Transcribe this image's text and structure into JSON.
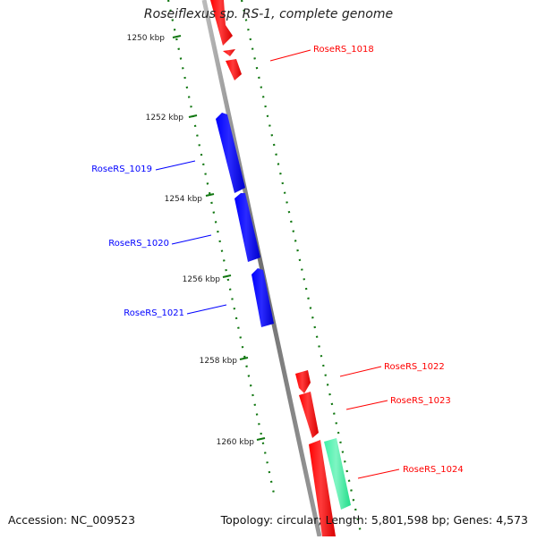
{
  "title": "Roseiflexus sp. RS-1, complete genome",
  "footer": {
    "accession": "Accession: NC_009523",
    "summary": "Topology: circular; Length: 5,801,598 bp; Genes: 4,573"
  },
  "scale_labels": [
    "1250 kbp",
    "1252 kbp",
    "1254 kbp",
    "1256 kbp",
    "1258 kbp",
    "1260 kbp"
  ],
  "genes": [
    {
      "label": "RoseRS_1018",
      "strand": "forward",
      "color": "#ff0000"
    },
    {
      "label": "RoseRS_1019",
      "strand": "reverse",
      "color": "#0000ff"
    },
    {
      "label": "RoseRS_1020",
      "strand": "reverse",
      "color": "#0000ff"
    },
    {
      "label": "RoseRS_1021",
      "strand": "reverse",
      "color": "#0000ff"
    },
    {
      "label": "RoseRS_1022",
      "strand": "forward",
      "color": "#ff0000"
    },
    {
      "label": "RoseRS_1023",
      "strand": "forward",
      "color": "#ff0000"
    },
    {
      "label": "RoseRS_1024",
      "strand": "forward",
      "color": "#33ee99"
    }
  ],
  "colors": {
    "backbone": "#8c8c8c",
    "ticks": "#117711",
    "forward_gene": "#ff0000",
    "reverse_gene": "#0000ff",
    "other_gene": "#33ee99"
  }
}
